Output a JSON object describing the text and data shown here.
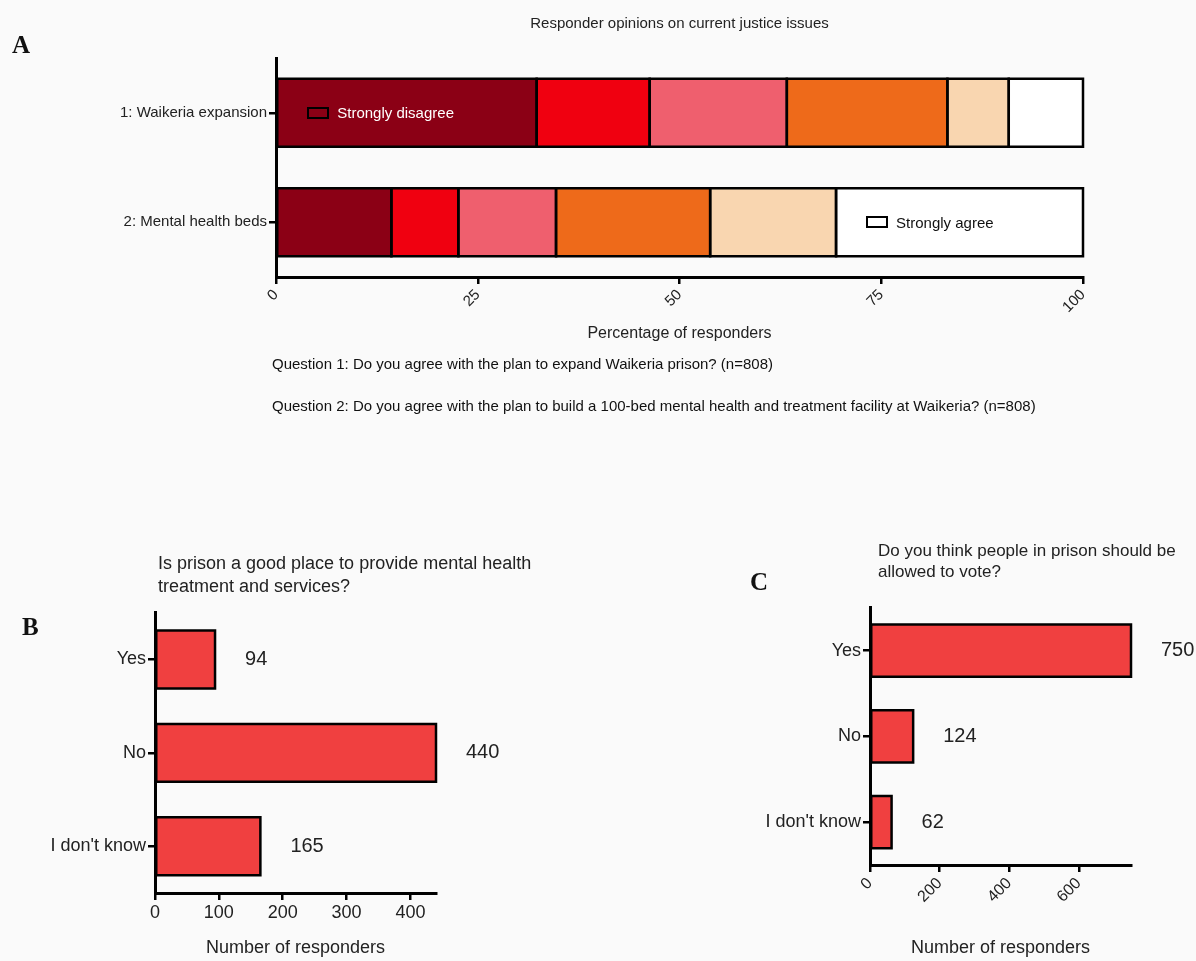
{
  "chart_data": [
    {
      "type": "bar",
      "orientation": "horizontal",
      "stacked": true,
      "title": "Responder opinions on current justice issues",
      "xlabel": "Percentage of responders",
      "categories": [
        "1: Waikeria expansion",
        "2: Mental health beds"
      ],
      "series": [
        {
          "name": "Strongly disagree",
          "color": "#8b0015",
          "values": [
            32.3,
            14.3
          ]
        },
        {
          "color": "#f00010",
          "values": [
            14.0,
            8.3
          ]
        },
        {
          "color": "#ef5f6e",
          "values": [
            17.0,
            12.1
          ]
        },
        {
          "color": "#ee6a1a",
          "values": [
            19.9,
            19.1
          ]
        },
        {
          "color": "#f9d6b0",
          "values": [
            7.6,
            15.6
          ]
        },
        {
          "name": "Strongly agree",
          "color": "#ffffff",
          "values": [
            9.2,
            30.6
          ]
        }
      ],
      "xlim": [
        0,
        100
      ],
      "xticks": [
        0,
        25,
        50,
        75,
        100
      ],
      "annotations": [
        "A",
        "Question 1: Do you agree with the plan to expand Waikeria prison? (n=808)",
        "Question 2: Do you agree with the plan to build a 100-bed mental health and treatment facility at Waikeria? (n=808)"
      ]
    },
    {
      "type": "bar",
      "orientation": "horizontal",
      "title": "Is prison a good place to provide mental health treatment and services?",
      "xlabel": "Number of responders",
      "categories": [
        "Yes",
        "No",
        "I don't know"
      ],
      "values": [
        94,
        440,
        165
      ],
      "color": "#f04040",
      "data_labels": true,
      "xlim": [
        0,
        440
      ],
      "xticks": [
        0,
        100,
        200,
        300,
        400
      ],
      "annotations": [
        "B"
      ]
    },
    {
      "type": "bar",
      "orientation": "horizontal",
      "title": "Do you think people in prison should be allowed to vote?",
      "xlabel": "Number of responders",
      "categories": [
        "Yes",
        "No",
        "I don't know"
      ],
      "values": [
        750,
        124,
        62
      ],
      "color": "#f04040",
      "data_labels": true,
      "xlim": [
        0,
        750
      ],
      "xticks": [
        0,
        200,
        400,
        600
      ],
      "annotations": [
        "C"
      ]
    }
  ]
}
